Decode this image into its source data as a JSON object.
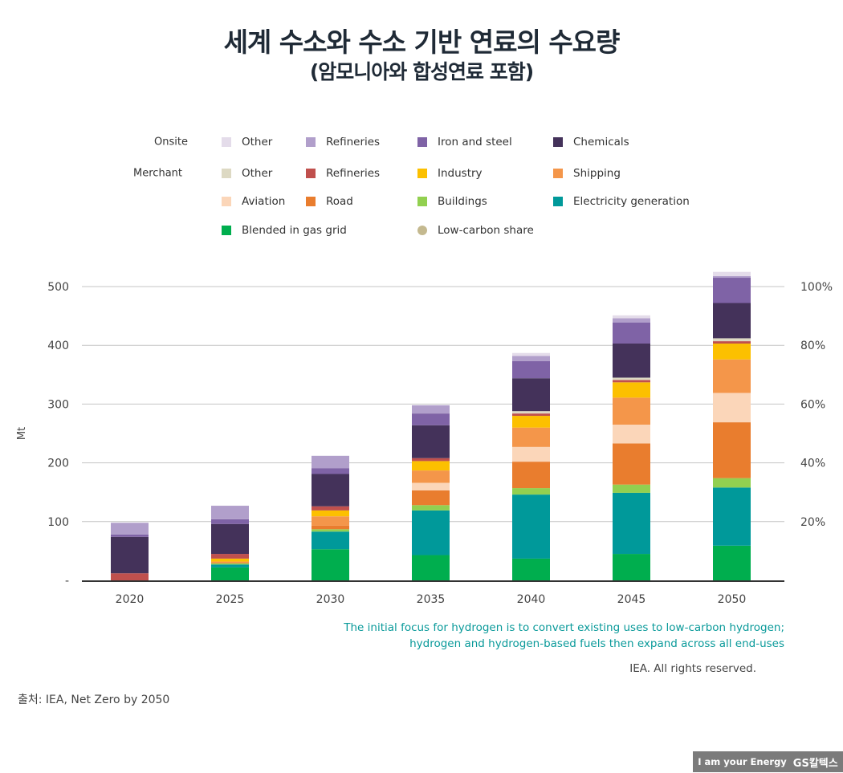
{
  "title": "세계 수소와 수소 기반 연료의 수요량",
  "subtitle": "(암모니아와 합성연료 포함)",
  "legend": {
    "groups": [
      "Onsite",
      "Merchant"
    ],
    "items": [
      {
        "key": "onsite_other",
        "label": "Other",
        "color": "#e4dcea"
      },
      {
        "key": "onsite_refineries",
        "label": "Refineries",
        "color": "#b19fcb"
      },
      {
        "key": "iron_steel",
        "label": "Iron and steel",
        "color": "#7f63a6"
      },
      {
        "key": "chemicals",
        "label": "Chemicals",
        "color": "#44325a"
      },
      {
        "key": "merchant_other",
        "label": "Other",
        "color": "#ddd9c3"
      },
      {
        "key": "merchant_refineries",
        "label": "Refineries",
        "color": "#c0504d"
      },
      {
        "key": "industry",
        "label": "Industry",
        "color": "#fcc000"
      },
      {
        "key": "shipping",
        "label": "Shipping",
        "color": "#f4964a"
      },
      {
        "key": "aviation",
        "label": "Aviation",
        "color": "#fbd6b9"
      },
      {
        "key": "road",
        "label": "Road",
        "color": "#e97d2e"
      },
      {
        "key": "buildings",
        "label": "Buildings",
        "color": "#92d050"
      },
      {
        "key": "electricity",
        "label": "Electricity generation",
        "color": "#00999a"
      },
      {
        "key": "blended",
        "label": "Blended in gas grid",
        "color": "#00ae4e"
      },
      {
        "key": "low_carbon_share",
        "label": "Low-carbon share",
        "color": "#c4b98f",
        "marker": "circle"
      }
    ]
  },
  "chart_data": {
    "type": "stacked-bar",
    "categories": [
      "2020",
      "2025",
      "2030",
      "2035",
      "2040",
      "2045",
      "2050"
    ],
    "ylabel": "Mt",
    "ylim": [
      0,
      500
    ],
    "yticks": [
      {
        "v": 0,
        "label": "-"
      },
      {
        "v": 100,
        "label": "100"
      },
      {
        "v": 200,
        "label": "200"
      },
      {
        "v": 300,
        "label": "300"
      },
      {
        "v": 400,
        "label": "400"
      },
      {
        "v": 500,
        "label": "500"
      }
    ],
    "y2ticks": [
      {
        "v": 20,
        "label": "20%"
      },
      {
        "v": 40,
        "label": "40%"
      },
      {
        "v": 60,
        "label": "60%"
      },
      {
        "v": 80,
        "label": "80%"
      },
      {
        "v": 100,
        "label": "100%"
      }
    ],
    "y2lim": [
      0,
      100
    ],
    "grid": true,
    "series": [
      {
        "key": "blended",
        "values": [
          0,
          22,
          53,
          43,
          37,
          45,
          59
        ]
      },
      {
        "key": "electricity",
        "values": [
          0,
          5,
          30,
          76,
          109,
          104,
          99
        ]
      },
      {
        "key": "buildings",
        "values": [
          0,
          2,
          4,
          9,
          11,
          14,
          16
        ]
      },
      {
        "key": "road",
        "values": [
          0,
          1,
          6,
          25,
          45,
          70,
          95
        ]
      },
      {
        "key": "aviation",
        "values": [
          0,
          0,
          0,
          13,
          25,
          32,
          50
        ]
      },
      {
        "key": "shipping",
        "values": [
          0,
          2,
          16,
          21,
          33,
          46,
          57
        ]
      },
      {
        "key": "industry",
        "values": [
          0,
          5,
          10,
          16,
          20,
          26,
          27
        ]
      },
      {
        "key": "merchant_refineries",
        "values": [
          12,
          8,
          7,
          5,
          4,
          4,
          4
        ]
      },
      {
        "key": "merchant_other",
        "values": [
          0,
          0,
          0,
          0,
          4,
          4,
          5
        ]
      },
      {
        "key": "chemicals",
        "values": [
          62,
          51,
          55,
          56,
          56,
          58,
          60
        ]
      },
      {
        "key": "iron_steel",
        "values": [
          4,
          8,
          10,
          20,
          29,
          36,
          43
        ]
      },
      {
        "key": "onsite_refineries",
        "values": [
          20,
          23,
          21,
          14,
          9,
          7,
          3
        ]
      },
      {
        "key": "onsite_other",
        "values": [
          0,
          0,
          0,
          0,
          5,
          5,
          7
        ]
      }
    ]
  },
  "note": [
    "The initial focus for hydrogen is to convert existing uses to low-carbon hydrogen;",
    "hydrogen and hydrogen-based fuels then expand across all end-uses"
  ],
  "rights": "IEA. All rights reserved.",
  "source": "출처: IEA, Net Zero by 2050",
  "logo": {
    "slogan": "I am your Energy",
    "brand": "GS칼텍스"
  }
}
